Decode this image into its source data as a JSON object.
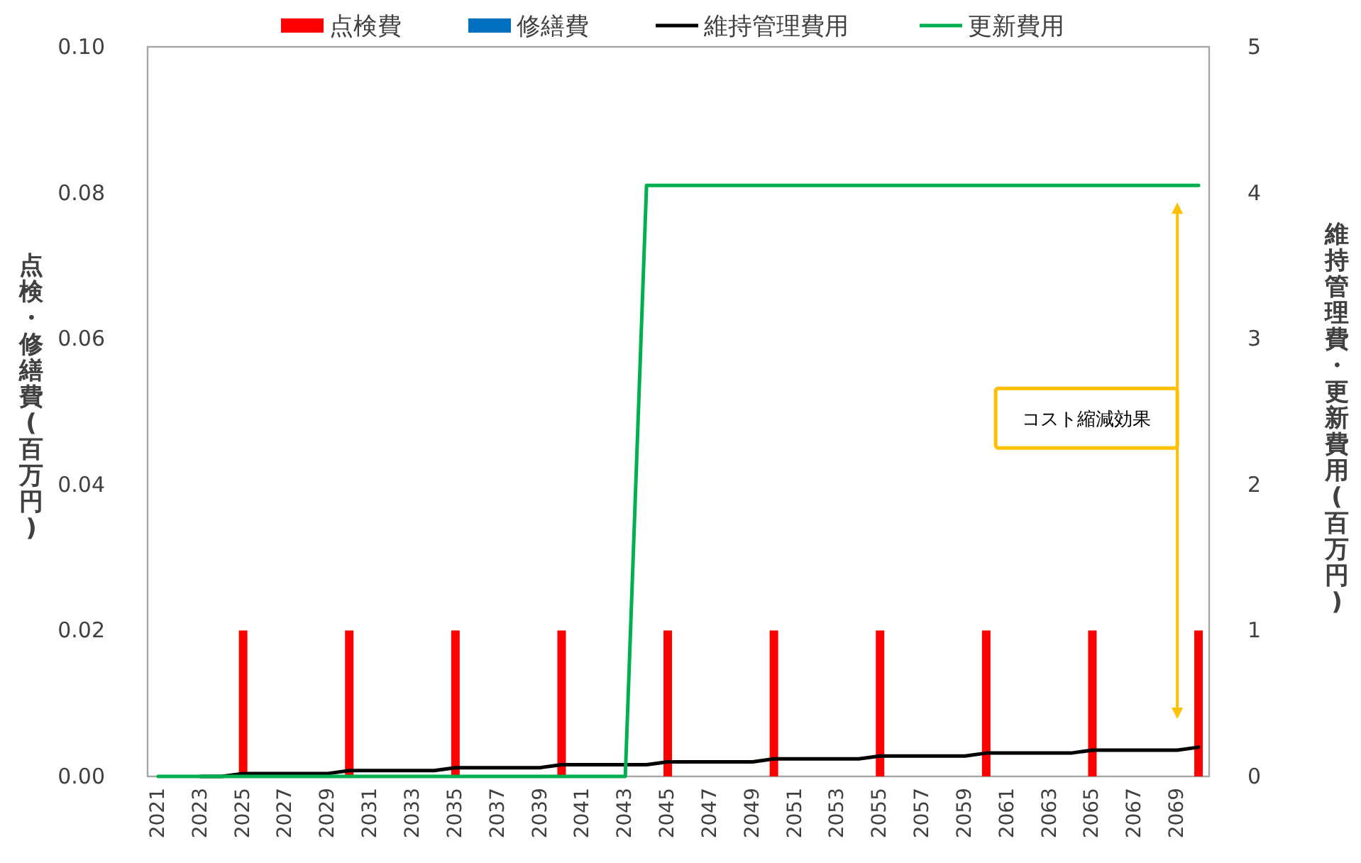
{
  "chart_data": {
    "type": "bar",
    "categories": [
      "2021",
      null,
      "2023",
      null,
      "2025",
      null,
      "2027",
      null,
      "2029",
      null,
      "2031",
      null,
      "2033",
      null,
      "2035",
      null,
      "2037",
      null,
      "2039",
      null,
      "2041",
      null,
      "2043",
      null,
      "2045",
      null,
      "2047",
      null,
      "2049",
      null,
      "2051",
      null,
      "2053",
      null,
      "2055",
      null,
      "2057",
      null,
      "2059",
      null,
      "2061",
      null,
      "2063",
      null,
      "2065",
      null,
      "2067",
      null,
      "2069",
      null
    ],
    "ylabel": "点検・修繕費(百万円)",
    "y2label": "維持管理費・更新費用(百万円)",
    "ylim": [
      0,
      0.1
    ],
    "yticks": [
      {
        "value": 0,
        "label": "0.00"
      },
      {
        "value": 0.02,
        "label": "0.02"
      },
      {
        "value": 0.04,
        "label": "0.04"
      },
      {
        "value": 0.06,
        "label": "0.06"
      },
      {
        "value": 0.08,
        "label": "0.08"
      },
      {
        "value": 0.1,
        "label": "0.10"
      }
    ],
    "y2lim": [
      0,
      5
    ],
    "y2ticks": [
      0,
      1,
      2,
      3,
      4,
      5
    ],
    "legend": "top",
    "series": [
      {
        "name": "点検費",
        "color": "#ff0000",
        "values": [
          null,
          null,
          null,
          null,
          0.02,
          null,
          null,
          null,
          null,
          0.02,
          null,
          null,
          null,
          null,
          0.02,
          null,
          null,
          null,
          null,
          0.02,
          null,
          null,
          null,
          null,
          0.02,
          null,
          null,
          null,
          null,
          0.02,
          null,
          null,
          null,
          null,
          0.02,
          null,
          null,
          null,
          null,
          0.02,
          null,
          null,
          null,
          null,
          0.02,
          null,
          null,
          null,
          null,
          0.02
        ]
      },
      {
        "name": "修繕費",
        "color": "#0070c0",
        "values": [
          null,
          null,
          null,
          null,
          null,
          null,
          null,
          null,
          null,
          null,
          null,
          null,
          null,
          null,
          null,
          null,
          null,
          null,
          null,
          null,
          null,
          null,
          null,
          null,
          null,
          null,
          null,
          null,
          null,
          null,
          null,
          null,
          null,
          null,
          null,
          null,
          null,
          null,
          null,
          null,
          null,
          null,
          null,
          null,
          null,
          null,
          null,
          null,
          null,
          null
        ]
      },
      {
        "name": "維持管理費用",
        "type": "line",
        "axis": "y2",
        "color": "#000000",
        "values": [
          null,
          null,
          0,
          0,
          0.02,
          0.02,
          0.02,
          0.02,
          0.02,
          0.04,
          0.04,
          0.04,
          0.04,
          0.04,
          0.06,
          0.06,
          0.06,
          0.06,
          0.06,
          0.08,
          0.08,
          0.08,
          0.08,
          0.08,
          0.1,
          0.1,
          0.1,
          0.1,
          0.1,
          0.12,
          0.12,
          0.12,
          0.12,
          0.12,
          0.14,
          0.14,
          0.14,
          0.14,
          0.14,
          0.16,
          0.16,
          0.16,
          0.16,
          0.16,
          0.18,
          0.18,
          0.18,
          0.18,
          0.18,
          0.2
        ]
      },
      {
        "name": "更新費用",
        "type": "line",
        "axis": "y2",
        "color": "#00b050",
        "values": [
          0,
          0,
          0,
          0,
          0,
          0,
          0,
          0,
          0,
          0,
          0,
          0,
          0,
          0,
          0,
          0,
          0,
          0,
          0,
          0,
          0,
          0,
          0,
          4.05,
          4.05,
          4.05,
          4.05,
          4.05,
          4.05,
          4.05,
          4.05,
          4.05,
          4.05,
          4.05,
          4.05,
          4.05,
          4.05,
          4.05,
          4.05,
          4.05,
          4.05,
          4.05,
          4.05,
          4.05,
          4.05,
          4.05,
          4.05,
          4.05,
          4.05,
          4.05
        ]
      }
    ],
    "annotations": [
      "コスト縮減効果"
    ]
  }
}
